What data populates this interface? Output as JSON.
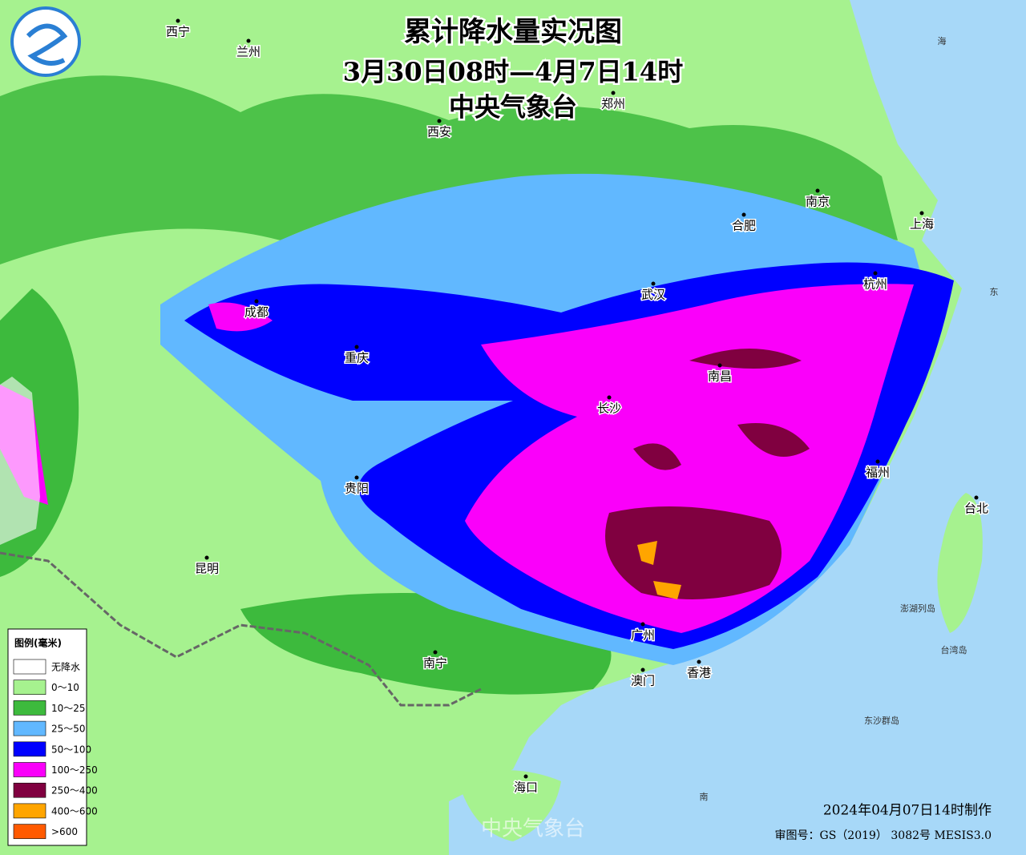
{
  "header": {
    "title": "累计降水量实况图",
    "subtitle": "3月30日08时—4月7日14时",
    "agency": "中央气象台"
  },
  "cities": [
    {
      "label": "西宁"
    },
    {
      "label": "兰州"
    },
    {
      "label": "郑州"
    },
    {
      "label": "西安"
    },
    {
      "label": "南京"
    },
    {
      "label": "合肥"
    },
    {
      "label": "上海"
    },
    {
      "label": "杭州"
    },
    {
      "label": "武汉"
    },
    {
      "label": "成都"
    },
    {
      "label": "重庆"
    },
    {
      "label": "南昌"
    },
    {
      "label": "长沙"
    },
    {
      "label": "福州"
    },
    {
      "label": "台北"
    },
    {
      "label": "贵阳"
    },
    {
      "label": "昆明"
    },
    {
      "label": "南宁"
    },
    {
      "label": "广州"
    },
    {
      "label": "香港"
    },
    {
      "label": "澳门"
    },
    {
      "label": "海口"
    }
  ],
  "places": [
    {
      "label": "澎湖列岛"
    },
    {
      "label": "台湾岛"
    },
    {
      "label": "东沙群岛"
    },
    {
      "label": "海"
    },
    {
      "label": "东"
    },
    {
      "label": "南"
    }
  ],
  "legend": {
    "title": "图例(毫米)",
    "items": [
      {
        "label": "无降水",
        "color": "#ffffff"
      },
      {
        "label": "0～10",
        "color": "#a6f28f"
      },
      {
        "label": "10～25",
        "color": "#3dba3d"
      },
      {
        "label": "25～50",
        "color": "#61b8ff"
      },
      {
        "label": "50～100",
        "color": "#0000ff"
      },
      {
        "label": "100～250",
        "color": "#fa00fa"
      },
      {
        "label": "250～400",
        "color": "#800040"
      },
      {
        "label": "400～600",
        "color": "#ffa500"
      },
      {
        "label": ">600",
        "color": "#ff5a00"
      }
    ]
  },
  "footer": {
    "made": "2024年04月07日14时制作",
    "approval": "审图号：GS（2019） 3082号 MESIS3.0",
    "watermark": "中央气象台"
  }
}
